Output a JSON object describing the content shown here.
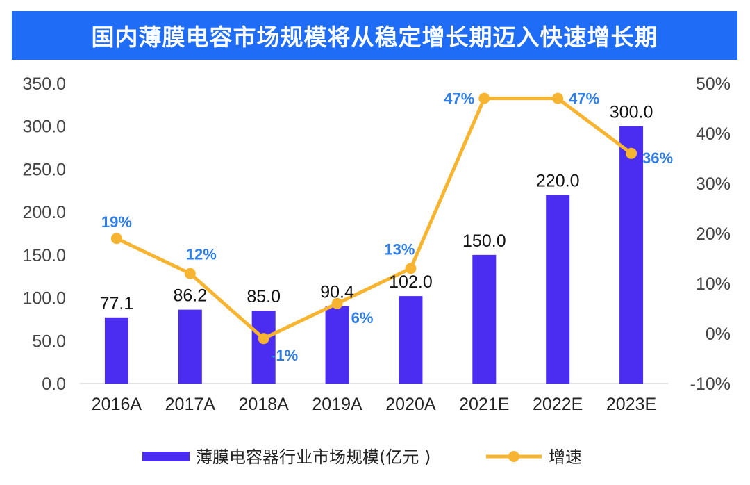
{
  "chart_data": {
    "type": "bar+line",
    "title": "国内薄膜电容市场规模将从稳定增长期迈入快速增长期",
    "categories": [
      "2016A",
      "2017A",
      "2018A",
      "2019A",
      "2020A",
      "2021E",
      "2022E",
      "2023E"
    ],
    "series": [
      {
        "name": "薄膜电容器行业市场规模(亿元 )",
        "type": "bar",
        "axis": "left",
        "color": "#4a2df0",
        "values": [
          77.1,
          86.2,
          85.0,
          90.4,
          102.0,
          150.0,
          220.0,
          300.0
        ],
        "labels": [
          "77.1",
          "86.2",
          "85.0",
          "90.4",
          "102.0",
          "150.0",
          "220.0",
          "300.0"
        ]
      },
      {
        "name": "增速",
        "type": "line",
        "axis": "right",
        "color": "#f7b431",
        "values": [
          19,
          12,
          -1,
          6,
          13,
          47,
          47,
          36
        ],
        "labels": [
          "19%",
          "12%",
          "-1%",
          "6%",
          "13%",
          "47%",
          "47%",
          "36%"
        ],
        "label_color": "#2f7de6"
      }
    ],
    "left_axis": {
      "ylim": [
        0,
        350
      ],
      "ticks": [
        "0.0",
        "50.0",
        "100.0",
        "150.0",
        "200.0",
        "250.0",
        "300.0",
        "350.0"
      ]
    },
    "right_axis": {
      "ylim": [
        -10,
        50
      ],
      "ticks": [
        "-10%",
        "0%",
        "10%",
        "20%",
        "30%",
        "40%",
        "50%"
      ]
    },
    "grid": false,
    "legend_position": "bottom",
    "title_bar_color": "#1f6cf6"
  }
}
